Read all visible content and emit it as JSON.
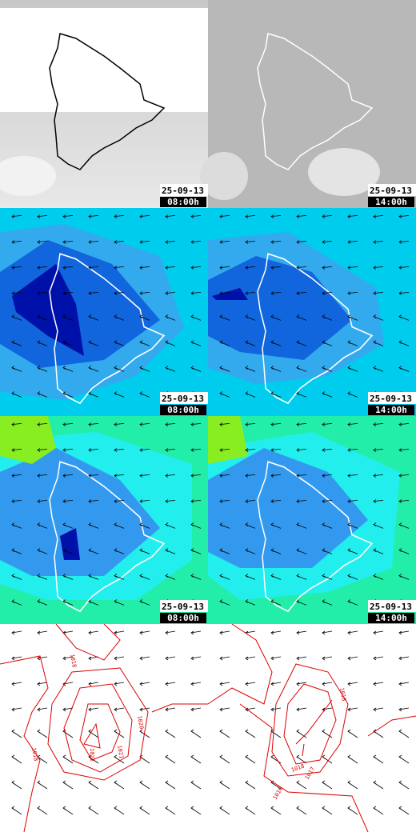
{
  "panels": [
    {
      "date": "25-09-13",
      "time": "08:00h"
    },
    {
      "date": "25-09-13",
      "time": "14:00h"
    },
    {
      "date": "25-09-13",
      "time": "08:00h"
    },
    {
      "date": "25-09-13",
      "time": "14:00h"
    },
    {
      "date": "25-09-13",
      "time": "08:00h"
    },
    {
      "date": "25-09-13",
      "time": "14:00h"
    }
  ],
  "contour_labels": [
    [
      "1018",
      "1020",
      "1022",
      "1021",
      "1018"
    ],
    [
      "1018",
      "1018",
      "1017",
      "1016"
    ]
  ]
}
